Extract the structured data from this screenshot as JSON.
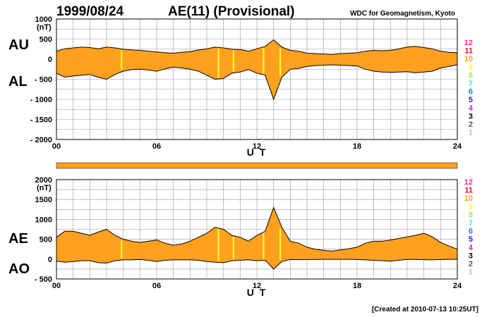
{
  "header": {
    "date": "1999/08/24",
    "title": "AE(11) (Provisional)",
    "source": "WDC for Geomagnetism, Kyoto"
  },
  "footer": {
    "created": "[Created at 2010-07-13 10:25UT]"
  },
  "colors": {
    "fill": "#FFA01E",
    "outline": "#000000",
    "highlight": "#FFFF33",
    "strip": "#FFA01E"
  },
  "scale": {
    "labels": [
      "12",
      "11",
      "10",
      "9",
      "8",
      "7",
      "6",
      "5",
      "4",
      "3",
      "2",
      "1"
    ],
    "colors": [
      "#FF2D8C",
      "#E8111B",
      "#FFA01E",
      "#FFFF2E",
      "#9BE85A",
      "#2EE8E8",
      "#1E78FF",
      "#2020C8",
      "#D21ED2",
      "#000000",
      "#555555",
      "#BBBBBB"
    ]
  },
  "chart_data": [
    {
      "type": "area",
      "name": "AU/AL panel",
      "labels": {
        "upper": "AU",
        "lower": "AL"
      },
      "unit": "(nT)",
      "xlabel": "U T",
      "ylabel": "",
      "xlim": [
        0,
        24
      ],
      "ylim": [
        -2000,
        1000
      ],
      "xticks": [
        "00",
        "06",
        "12",
        "18",
        "24"
      ],
      "yticks": [
        "1000",
        "500",
        "0",
        "- 500",
        "- 1000",
        "- 1500",
        "- 2000"
      ],
      "x": [
        0,
        0.5,
        1,
        1.5,
        2,
        2.5,
        3,
        3.5,
        4,
        4.5,
        5,
        5.5,
        6,
        6.5,
        7,
        7.5,
        8,
        8.5,
        9,
        9.5,
        10,
        10.5,
        11,
        11.5,
        12,
        12.5,
        13,
        13.5,
        14,
        14.5,
        15,
        15.5,
        16,
        16.5,
        17,
        17.5,
        18,
        18.5,
        19,
        19.5,
        20,
        20.5,
        21,
        21.5,
        22,
        22.5,
        23,
        23.5,
        24
      ],
      "series": [
        {
          "name": "AU",
          "values": [
            200,
            260,
            280,
            300,
            290,
            260,
            300,
            280,
            250,
            230,
            220,
            200,
            180,
            160,
            150,
            170,
            190,
            230,
            260,
            300,
            280,
            250,
            240,
            200,
            260,
            320,
            480,
            300,
            220,
            200,
            150,
            140,
            130,
            120,
            140,
            150,
            160,
            200,
            220,
            210,
            220,
            260,
            300,
            320,
            290,
            260,
            200,
            170,
            160
          ]
        },
        {
          "name": "AL",
          "values": [
            -350,
            -450,
            -420,
            -400,
            -380,
            -450,
            -500,
            -380,
            -300,
            -260,
            -250,
            -270,
            -300,
            -240,
            -200,
            -220,
            -250,
            -300,
            -400,
            -500,
            -480,
            -350,
            -320,
            -260,
            -350,
            -400,
            -1000,
            -450,
            -250,
            -230,
            -180,
            -160,
            -150,
            -140,
            -150,
            -160,
            -170,
            -250,
            -300,
            -320,
            -330,
            -320,
            -310,
            -340,
            -320,
            -300,
            -220,
            -180,
            -140
          ]
        }
      ],
      "highlights": [
        3.9,
        9.7,
        10.6,
        12.4,
        13.4
      ]
    },
    {
      "type": "area",
      "name": "AE/AO panel",
      "labels": {
        "upper": "AE",
        "lower": "AO"
      },
      "unit": "(nT)",
      "xlabel": "U T",
      "ylabel": "",
      "xlim": [
        0,
        24
      ],
      "ylim": [
        -500,
        2000
      ],
      "xticks": [
        "00",
        "06",
        "12",
        "18",
        "24"
      ],
      "yticks": [
        "2000",
        "1500",
        "1000",
        "500",
        "0",
        "- 500"
      ],
      "x": [
        0,
        0.5,
        1,
        1.5,
        2,
        2.5,
        3,
        3.5,
        4,
        4.5,
        5,
        5.5,
        6,
        6.5,
        7,
        7.5,
        8,
        8.5,
        9,
        9.5,
        10,
        10.5,
        11,
        11.5,
        12,
        12.5,
        13,
        13.5,
        14,
        14.5,
        15,
        15.5,
        16,
        16.5,
        17,
        17.5,
        18,
        18.5,
        19,
        19.5,
        20,
        20.5,
        21,
        21.5,
        22,
        22.5,
        23,
        23.5,
        24
      ],
      "series": [
        {
          "name": "AE",
          "values": [
            550,
            700,
            700,
            650,
            600,
            680,
            750,
            600,
            500,
            450,
            420,
            450,
            480,
            400,
            350,
            380,
            450,
            550,
            650,
            800,
            750,
            600,
            550,
            450,
            600,
            700,
            1300,
            800,
            450,
            400,
            300,
            250,
            220,
            200,
            230,
            260,
            300,
            400,
            450,
            450,
            480,
            520,
            560,
            600,
            650,
            560,
            420,
            330,
            250
          ]
        },
        {
          "name": "AO",
          "values": [
            -50,
            -80,
            -60,
            -40,
            -40,
            -90,
            -100,
            -40,
            -20,
            -20,
            -10,
            -30,
            -60,
            -30,
            -20,
            -20,
            -20,
            -30,
            -60,
            -80,
            -90,
            -40,
            -30,
            -20,
            -40,
            -30,
            -250,
            -60,
            -10,
            -15,
            -10,
            -10,
            -5,
            -5,
            -5,
            -5,
            -10,
            -20,
            -30,
            -40,
            -50,
            -30,
            -5,
            -10,
            -15,
            -20,
            -10,
            -5,
            -5
          ]
        }
      ],
      "highlights": [
        3.9,
        9.7,
        10.6,
        12.4,
        13.4
      ]
    }
  ]
}
